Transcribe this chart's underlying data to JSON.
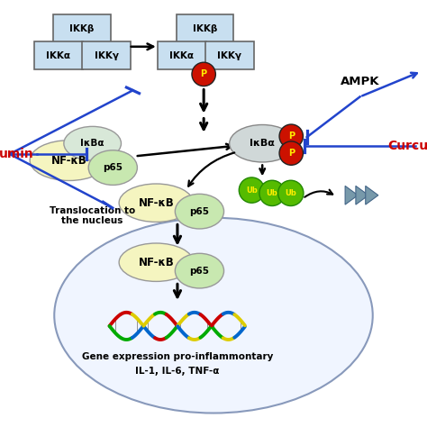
{
  "bg_color": "#ffffff",
  "ikk_color": "#c8dff0",
  "ikk_edge": "#666666",
  "ellipse_ikba_color": "#d8e8d8",
  "ellipse_nfkb_color": "#f5f5c0",
  "ellipse_p65_color": "#c8e8b0",
  "ellipse_ikba_right_color": "#d0d8d8",
  "p_circle_color": "#cc1100",
  "ub_circle_color": "#55bb00",
  "tri_color": "#7799aa",
  "nucleus_face": "#f0f5ff",
  "nucleus_edge": "#8899bb",
  "blue_line": "#2244cc",
  "arrow_color": "#111111",
  "red_text": "#cc0000",
  "ampk_text": "AMPK",
  "curcumin_right": "Curcu",
  "curcumin_left": "umin"
}
